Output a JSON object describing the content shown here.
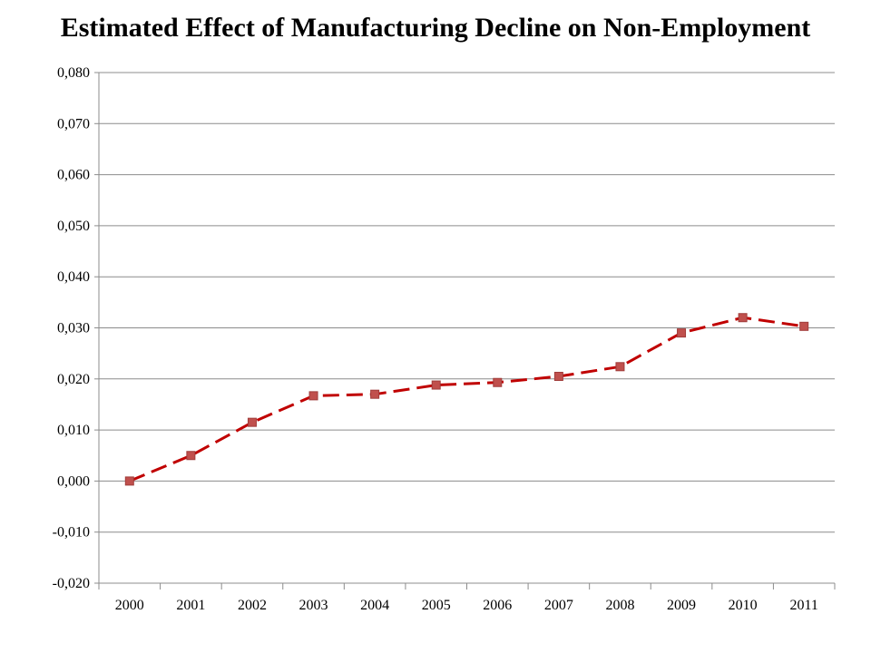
{
  "chart_data": {
    "type": "line",
    "title": "Estimated Effect of Manufacturing Decline on Non-Employment",
    "categories": [
      "2000",
      "2001",
      "2002",
      "2003",
      "2004",
      "2005",
      "2006",
      "2007",
      "2008",
      "2009",
      "2010",
      "2011"
    ],
    "series": [
      {
        "values": [
          0.0,
          0.005,
          0.0115,
          0.0167,
          0.017,
          0.0188,
          0.0193,
          0.0205,
          0.0224,
          0.029,
          0.032,
          0.0303
        ]
      }
    ],
    "ylim": [
      -0.02,
      0.08
    ],
    "yticks": [
      "-0,020",
      "-0,010",
      "0,000",
      "0,010",
      "0,020",
      "0,030",
      "0,040",
      "0,050",
      "0,060",
      "0,070",
      "0,080"
    ],
    "grid": true,
    "line_color": "#C00000",
    "marker_color": "#C0504D",
    "line_style": "dashed",
    "marker": "square"
  }
}
